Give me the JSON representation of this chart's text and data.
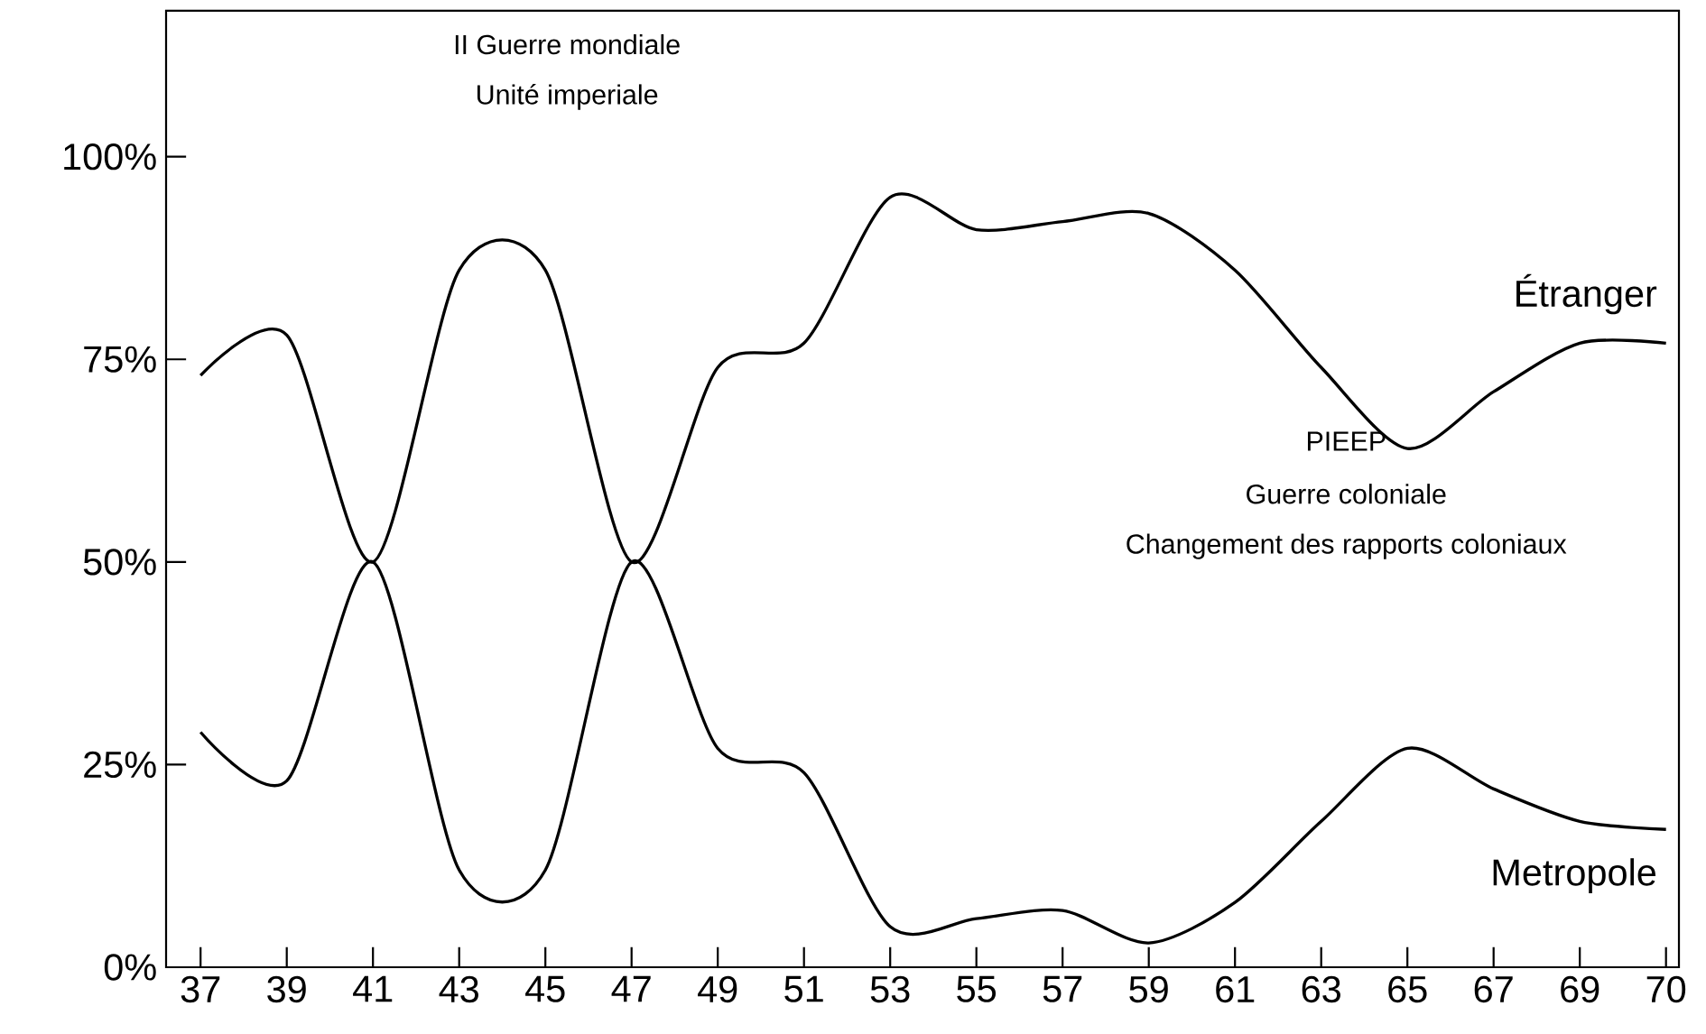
{
  "chart_data": {
    "type": "line",
    "categories": [
      "37",
      "39",
      "41",
      "43",
      "45",
      "47",
      "49",
      "51",
      "53",
      "55",
      "57",
      "59",
      "61",
      "63",
      "65",
      "67",
      "69",
      "70"
    ],
    "series": [
      {
        "name": "Étranger",
        "color": "#000000",
        "values": [
          73,
          78,
          50,
          86,
          86,
          50,
          74,
          77,
          95,
          91,
          92,
          93,
          86,
          74,
          64,
          71,
          77,
          77
        ]
      },
      {
        "name": "Metropole",
        "color": "#000000",
        "values": [
          29,
          23,
          50,
          12,
          12,
          50,
          27,
          24,
          5,
          6,
          7,
          3,
          8,
          18,
          27,
          22,
          18,
          17
        ]
      }
    ],
    "ylim": [
      0,
      118
    ],
    "yticks": [
      {
        "value": 0,
        "label": "0%"
      },
      {
        "value": 25,
        "label": "25%"
      },
      {
        "value": 50,
        "label": "50%"
      },
      {
        "value": 75,
        "label": "75%"
      },
      {
        "value": 100,
        "label": "100%"
      }
    ],
    "annotations": [
      "II Guerre mondiale",
      "Unité imperiale",
      "PIEEP",
      "Guerre coloniale",
      "Changement des rapports coloniaux"
    ],
    "grid": false,
    "legend": false,
    "marker": "none",
    "line_style": "solid"
  }
}
